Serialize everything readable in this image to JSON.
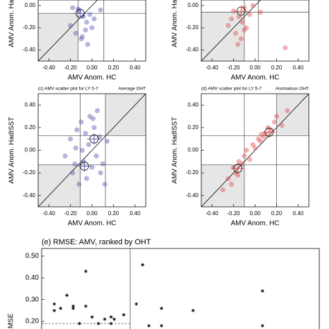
{
  "chart_data": [
    {
      "type": "scatter",
      "xlabel": "AMV Anom. HC",
      "ylabel": "AMV Anom. HadISST",
      "color": "#5a5ab4",
      "xlim": [
        -0.5,
        0.5
      ],
      "ylim": [
        -0.5,
        0.05
      ],
      "xticks": [
        {
          "value": -0.4,
          "label": "-0.40"
        },
        {
          "value": -0.2,
          "label": "-0.20"
        },
        {
          "value": 0,
          "label": "0.00"
        },
        {
          "value": 0.2,
          "label": "0.20"
        },
        {
          "value": 0.4,
          "label": "0.40"
        }
      ],
      "yticks": [
        {
          "value": 0,
          "label": "0.00"
        },
        {
          "value": -0.2,
          "label": "-0.20"
        },
        {
          "value": -0.4,
          "label": "-0.40"
        }
      ],
      "x_thresholds": [
        -0.13,
        0.11
      ],
      "y_thresholds": [
        -0.07,
        0.07
      ],
      "x": [
        -0.18,
        -0.12,
        -0.08,
        -0.05,
        -0.02,
        0.0,
        -0.15,
        -0.1,
        -0.04,
        0.02,
        -0.2,
        -0.06,
        -0.13,
        0.08,
        -0.09
      ],
      "y": [
        -0.02,
        -0.05,
        -0.1,
        -0.15,
        -0.08,
        -0.2,
        -0.25,
        -0.3,
        -0.35,
        -0.12,
        -0.18,
        -0.22,
        -0.03,
        -0.04,
        -0.28
      ],
      "means": [
        {
          "x": -0.11,
          "y": -0.07
        }
      ]
    },
    {
      "type": "scatter",
      "xlabel": "AMV Anom. HC",
      "ylabel": "AMV Anom. HadISST",
      "color": "#e05050",
      "xlim": [
        -0.5,
        0.5
      ],
      "ylim": [
        -0.5,
        0.05
      ],
      "xticks": [
        {
          "value": -0.4,
          "label": "-0.40"
        },
        {
          "value": -0.2,
          "label": "-0.20"
        },
        {
          "value": 0,
          "label": "0.00"
        },
        {
          "value": 0.2,
          "label": "0.20"
        },
        {
          "value": 0.4,
          "label": "0.40"
        }
      ],
      "yticks": [
        {
          "value": 0,
          "label": "0.00"
        },
        {
          "value": -0.2,
          "label": "-0.20"
        },
        {
          "value": -0.4,
          "label": "-0.40"
        }
      ],
      "x_thresholds": [
        -0.1,
        0.03
      ],
      "y_thresholds": [
        -0.06,
        0.07
      ],
      "x": [
        -0.2,
        -0.15,
        -0.12,
        -0.1,
        -0.05,
        -0.08,
        -0.18,
        -0.22,
        -0.13,
        -0.02,
        0.05,
        -0.16,
        0.28,
        -0.25,
        -0.1
      ],
      "y": [
        -0.05,
        -0.1,
        -0.15,
        -0.02,
        -0.08,
        -0.2,
        -0.25,
        -0.12,
        -0.3,
        0.0,
        -0.06,
        -0.35,
        -0.38,
        -0.18,
        -0.22
      ],
      "means": [
        {
          "x": -0.13,
          "y": -0.05
        }
      ]
    },
    {
      "type": "scatter",
      "title": "(c) AMV scatter plot for LY 5-7",
      "annotation": "Average OHT",
      "xlabel": "AMV Anom. HC",
      "ylabel": "AMV Anom. HadISST",
      "color": "#5a5ab4",
      "xlim": [
        -0.5,
        0.5
      ],
      "ylim": [
        -0.5,
        0.5
      ],
      "xticks": [
        {
          "value": -0.4,
          "label": "-0.40"
        },
        {
          "value": -0.2,
          "label": "-0.20"
        },
        {
          "value": 0,
          "label": "0.00"
        },
        {
          "value": 0.2,
          "label": "0.20"
        },
        {
          "value": 0.4,
          "label": "0.40"
        }
      ],
      "yticks": [
        {
          "value": 0.4,
          "label": "0.40"
        },
        {
          "value": 0.2,
          "label": "0.20"
        },
        {
          "value": 0,
          "label": "0.00"
        },
        {
          "value": -0.2,
          "label": "-0.20"
        },
        {
          "value": -0.4,
          "label": "-0.40"
        }
      ],
      "x_thresholds": [
        -0.11,
        0.125
      ],
      "y_thresholds": [
        -0.13,
        0.13
      ],
      "x": [
        -0.25,
        -0.2,
        -0.18,
        -0.15,
        -0.12,
        -0.1,
        -0.08,
        -0.06,
        -0.05,
        -0.03,
        -0.02,
        0.0,
        0.02,
        0.04,
        0.05,
        0.07,
        0.1,
        0.12,
        0.14,
        -0.14,
        -0.09,
        0.08,
        -0.16,
        0.01
      ],
      "y": [
        -0.05,
        0.1,
        -0.2,
        0.02,
        -0.3,
        0.25,
        -0.1,
        0.15,
        -0.25,
        0.05,
        0.3,
        -0.15,
        0.2,
        -0.05,
        0.35,
        0.12,
        -0.12,
        -0.3,
        0.08,
        0.18,
        0.0,
        -0.2,
        -0.12,
        0.28
      ],
      "means": [
        {
          "x": -0.07,
          "y": -0.14
        },
        {
          "x": 0.02,
          "y": 0.1
        }
      ]
    },
    {
      "type": "scatter",
      "title": "(d) AMV scatter plot for LY 5-7",
      "annotation": "Anomalous OHT",
      "xlabel": "AMV Anom. HC",
      "ylabel": "AMV Anom. HadISST",
      "color": "#e05050",
      "xlim": [
        -0.5,
        0.5
      ],
      "ylim": [
        -0.5,
        0.5
      ],
      "xticks": [
        {
          "value": -0.4,
          "label": "-0.40"
        },
        {
          "value": -0.2,
          "label": "-0.20"
        },
        {
          "value": 0,
          "label": "0.00"
        },
        {
          "value": 0.2,
          "label": "0.20"
        },
        {
          "value": 0.4,
          "label": "0.40"
        }
      ],
      "yticks": [
        {
          "value": 0.4,
          "label": "0.40"
        },
        {
          "value": 0.2,
          "label": "0.20"
        },
        {
          "value": 0,
          "label": "0.00"
        },
        {
          "value": -0.2,
          "label": "-0.20"
        },
        {
          "value": -0.4,
          "label": "-0.40"
        }
      ],
      "x_thresholds": [
        -0.1,
        0.2
      ],
      "y_thresholds": [
        -0.13,
        0.13
      ],
      "x": [
        -0.3,
        -0.25,
        -0.22,
        -0.2,
        -0.18,
        -0.15,
        -0.12,
        -0.1,
        -0.08,
        -0.05,
        -0.02,
        0.0,
        0.03,
        0.05,
        0.08,
        0.1,
        0.12,
        0.15,
        0.18,
        0.2,
        0.25,
        0.3,
        -0.16,
        0.06
      ],
      "y": [
        -0.35,
        -0.25,
        -0.3,
        -0.15,
        -0.2,
        -0.1,
        -0.12,
        -0.05,
        0.0,
        -0.08,
        0.05,
        0.02,
        0.1,
        0.08,
        0.12,
        0.15,
        0.2,
        0.18,
        0.25,
        0.3,
        0.22,
        0.35,
        -0.22,
        0.14
      ],
      "means": [
        {
          "x": -0.16,
          "y": -0.16
        },
        {
          "x": 0.13,
          "y": 0.16
        }
      ]
    },
    {
      "type": "scatter",
      "marker": "asterisk",
      "title": "(e) RMSE: AMV, ranked by OHT",
      "ylabel": "RMSE",
      "xlim": [
        0,
        44
      ],
      "ylim": [
        0.165,
        0.535
      ],
      "yticks": [
        {
          "value": 0.5,
          "label": "0.50"
        },
        {
          "value": 0.4,
          "label": "0.40"
        },
        {
          "value": 0.3,
          "label": "0.30"
        },
        {
          "value": 0.2,
          "label": "0.20"
        }
      ],
      "x_thresholds": [
        14
      ],
      "reference_y": 0.19,
      "x": [
        2,
        2,
        3,
        4,
        5,
        5,
        6,
        7,
        7,
        8,
        9,
        10,
        11,
        11,
        11.5,
        13,
        15,
        16,
        17,
        19,
        19,
        24,
        35,
        35
      ],
      "y": [
        0.25,
        0.28,
        0.26,
        0.32,
        0.26,
        0.27,
        0.19,
        0.43,
        0.27,
        0.22,
        0.19,
        0.21,
        0.22,
        0.19,
        0.21,
        0.23,
        0.28,
        0.46,
        0.18,
        0.26,
        0.18,
        0.25,
        0.34,
        0.18
      ]
    }
  ]
}
